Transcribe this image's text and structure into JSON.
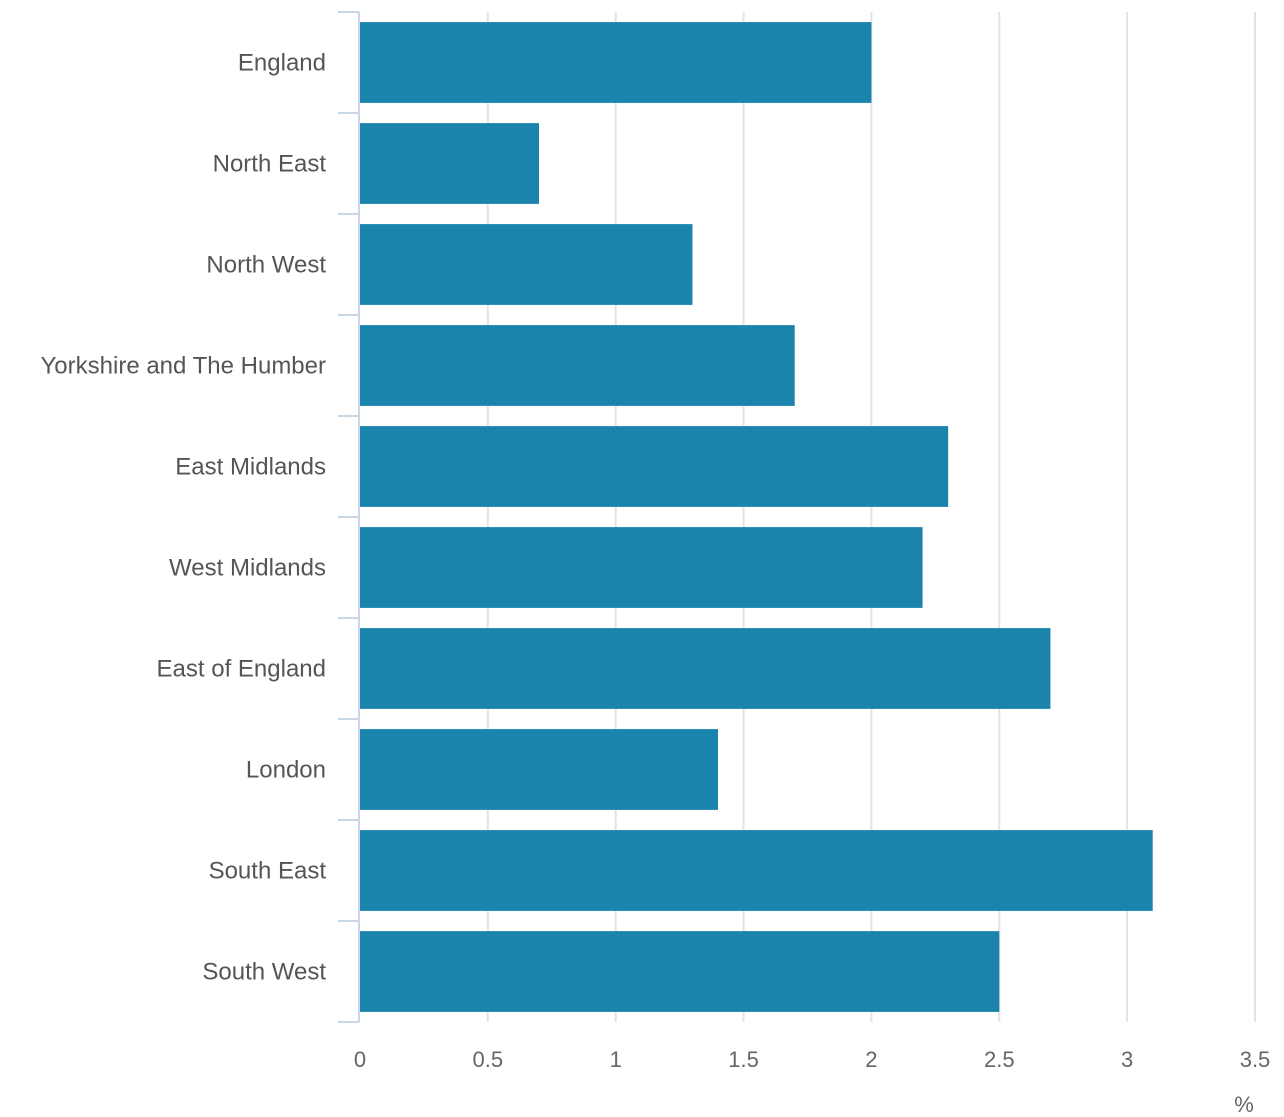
{
  "chart_data": {
    "type": "bar",
    "orientation": "horizontal",
    "categories": [
      "England",
      "North East",
      "North West",
      "Yorkshire and The Humber",
      "East Midlands",
      "West Midlands",
      "East of England",
      "London",
      "South East",
      "South West"
    ],
    "values": [
      2.0,
      0.7,
      1.3,
      1.7,
      2.3,
      2.2,
      2.7,
      1.4,
      3.1,
      2.5
    ],
    "xlim": [
      0,
      3.5
    ],
    "x_ticks": [
      "0",
      "0.5",
      "1",
      "1.5",
      "2",
      "2.5",
      "3",
      "3.5"
    ],
    "x_unit": "%",
    "grid": "vertical",
    "bar_color": "#1a84ad"
  }
}
